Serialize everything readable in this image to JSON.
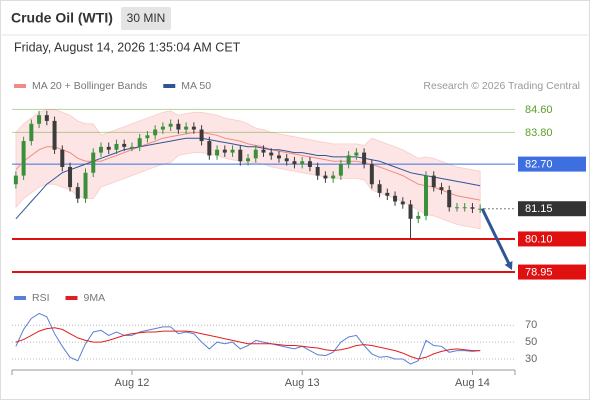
{
  "header": {
    "title": "Crude Oil (WTI)",
    "interval": "30 MIN",
    "timestamp": "Friday, August 14, 2026 1:35:04 AM CET"
  },
  "chart_data": [
    {
      "type": "candlestick",
      "source": "Research © 2026 Trading Central",
      "xlim": [
        -0.5,
        64.5
      ],
      "ylim": [
        78.5,
        85.1
      ],
      "up_color": "#3a8f3a",
      "down_color": "#3c3c3c",
      "band_color": "#fbd3d3",
      "open": [
        82.0,
        82.3,
        83.5,
        84.1,
        84.4,
        84.2,
        83.2,
        82.6,
        81.9,
        81.5,
        82.4,
        83.1,
        83.3,
        83.2,
        83.4,
        83.3,
        83.3,
        83.6,
        83.7,
        83.9,
        84.0,
        84.1,
        83.9,
        84.0,
        83.9,
        83.5,
        83.0,
        83.2,
        83.1,
        83.2,
        82.8,
        82.9,
        83.2,
        83.1,
        83.0,
        82.9,
        82.8,
        82.7,
        82.8,
        82.6,
        82.3,
        82.2,
        82.3,
        82.7,
        83.0,
        83.1,
        82.7,
        82.0,
        81.7,
        81.6,
        81.4,
        81.3,
        80.8,
        80.9,
        82.3,
        81.9,
        81.8,
        81.2,
        81.2,
        81.2,
        81.15
      ],
      "high": [
        82.45,
        83.65,
        84.25,
        84.55,
        84.55,
        84.35,
        83.35,
        82.75,
        82.05,
        82.55,
        83.25,
        83.45,
        83.45,
        83.55,
        83.55,
        83.45,
        83.75,
        83.85,
        84.05,
        84.15,
        84.25,
        84.25,
        84.15,
        84.15,
        84.05,
        83.65,
        83.35,
        83.35,
        83.35,
        83.35,
        83.05,
        83.35,
        83.35,
        83.25,
        83.15,
        83.05,
        82.95,
        82.95,
        82.95,
        82.75,
        82.45,
        82.45,
        82.85,
        83.15,
        83.25,
        83.25,
        82.85,
        82.15,
        81.85,
        81.75,
        81.55,
        81.45,
        81.05,
        82.45,
        82.45,
        82.05,
        81.95,
        81.35,
        81.35,
        81.35,
        81.3
      ],
      "low": [
        81.85,
        82.15,
        83.35,
        83.95,
        84.05,
        83.05,
        82.45,
        81.75,
        81.35,
        81.35,
        82.25,
        82.95,
        83.05,
        83.05,
        83.15,
        83.15,
        83.15,
        83.45,
        83.55,
        83.75,
        83.85,
        83.75,
        83.75,
        83.75,
        83.35,
        82.85,
        82.85,
        82.95,
        82.95,
        82.65,
        82.65,
        82.75,
        82.95,
        82.85,
        82.75,
        82.65,
        82.55,
        82.55,
        82.45,
        82.15,
        82.05,
        82.05,
        82.15,
        82.55,
        82.85,
        82.55,
        81.85,
        81.55,
        81.45,
        81.25,
        81.15,
        80.1,
        80.65,
        80.75,
        81.75,
        81.65,
        81.05,
        81.05,
        81.05,
        81.0,
        81.0
      ],
      "close": [
        82.3,
        83.5,
        84.1,
        84.4,
        84.2,
        83.2,
        82.6,
        81.9,
        81.5,
        82.4,
        83.1,
        83.3,
        83.2,
        83.4,
        83.3,
        83.3,
        83.6,
        83.7,
        83.9,
        84.0,
        84.1,
        83.9,
        84.0,
        83.9,
        83.5,
        83.0,
        83.2,
        83.1,
        83.2,
        82.8,
        82.9,
        83.2,
        83.1,
        83.0,
        82.9,
        82.8,
        82.7,
        82.8,
        82.6,
        82.3,
        82.2,
        82.3,
        82.7,
        83.0,
        83.1,
        82.7,
        82.0,
        81.7,
        81.6,
        81.4,
        81.3,
        80.8,
        80.9,
        82.3,
        81.9,
        81.8,
        81.2,
        81.2,
        81.2,
        81.15,
        81.15
      ],
      "series": [
        {
          "name": "MA 20 + Bollinger Bands",
          "color": "#f28b82",
          "values": [
            82.5,
            82.8,
            83.0,
            83.2,
            83.3,
            83.3,
            83.2,
            83.1,
            82.9,
            82.8,
            82.8,
            82.8,
            82.9,
            83.0,
            83.1,
            83.2,
            83.3,
            83.4,
            83.5,
            83.6,
            83.65,
            83.7,
            83.75,
            83.8,
            83.8,
            83.75,
            83.7,
            83.6,
            83.55,
            83.5,
            83.4,
            83.35,
            83.3,
            83.2,
            83.15,
            83.1,
            83.05,
            83.0,
            82.95,
            82.9,
            82.85,
            82.8,
            82.8,
            82.8,
            82.8,
            82.75,
            82.7,
            82.6,
            82.5,
            82.4,
            82.3,
            82.15,
            82.0,
            81.95,
            81.9,
            81.8,
            81.7,
            81.6,
            81.55,
            81.5,
            81.45
          ],
          "upper": [
            83.8,
            84.1,
            84.3,
            84.5,
            84.6,
            84.6,
            84.5,
            84.4,
            84.2,
            84.1,
            84.1,
            83.7,
            83.8,
            83.9,
            84.0,
            84.1,
            84.2,
            84.3,
            84.4,
            84.5,
            84.55,
            84.4,
            84.45,
            84.5,
            84.5,
            84.45,
            84.4,
            84.3,
            84.25,
            84.2,
            84.1,
            83.95,
            83.9,
            83.8,
            83.75,
            83.7,
            83.65,
            83.6,
            83.55,
            83.5,
            83.45,
            83.4,
            83.4,
            83.4,
            83.4,
            83.35,
            83.6,
            83.5,
            83.4,
            83.3,
            83.2,
            83.05,
            82.9,
            82.95,
            82.9,
            82.8,
            82.7,
            82.6,
            82.55,
            82.5,
            82.45
          ],
          "lower": [
            81.2,
            81.5,
            81.7,
            81.9,
            82.0,
            82.0,
            81.9,
            81.8,
            81.6,
            81.5,
            81.5,
            81.9,
            82.0,
            82.1,
            82.2,
            82.3,
            82.4,
            82.5,
            82.6,
            82.7,
            82.75,
            83.0,
            83.05,
            83.1,
            83.1,
            83.05,
            83.0,
            82.9,
            82.85,
            82.8,
            82.7,
            82.75,
            82.7,
            82.6,
            82.55,
            82.5,
            82.45,
            82.4,
            82.35,
            82.3,
            82.25,
            82.2,
            82.2,
            82.2,
            82.2,
            82.15,
            81.8,
            81.7,
            81.6,
            81.5,
            81.4,
            81.25,
            81.1,
            80.95,
            80.9,
            80.8,
            80.7,
            80.6,
            80.55,
            80.5,
            80.45
          ]
        },
        {
          "name": "MA 50",
          "color": "#2f5597",
          "values": [
            80.8,
            81.1,
            81.4,
            81.7,
            82.0,
            82.2,
            82.4,
            82.5,
            82.6,
            82.7,
            82.8,
            82.9,
            83.0,
            83.1,
            83.2,
            83.25,
            83.3,
            83.35,
            83.4,
            83.45,
            83.5,
            83.55,
            83.6,
            83.6,
            83.6,
            83.55,
            83.5,
            83.45,
            83.4,
            83.35,
            83.3,
            83.3,
            83.25,
            83.2,
            83.2,
            83.15,
            83.1,
            83.1,
            83.05,
            83.0,
            83.0,
            82.95,
            82.95,
            82.95,
            82.95,
            82.9,
            82.85,
            82.8,
            82.7,
            82.6,
            82.5,
            82.4,
            82.35,
            82.3,
            82.25,
            82.2,
            82.15,
            82.1,
            82.05,
            82.0,
            81.95
          ]
        }
      ],
      "levels": [
        {
          "value": 84.6,
          "label": "84.60",
          "color": "#5a9e2a"
        },
        {
          "value": 83.8,
          "label": "83.80",
          "color": "#5a9e2a"
        },
        {
          "value": 82.7,
          "label": "82.70",
          "color": "#3d6fe0"
        },
        {
          "value": 81.15,
          "label": "81.15",
          "color": "#333333"
        },
        {
          "value": 80.1,
          "label": "80.10",
          "color": "#e01010"
        },
        {
          "value": 78.95,
          "label": "78.95",
          "color": "#e01010"
        }
      ]
    },
    {
      "type": "line",
      "xlim": [
        -0.5,
        64.5
      ],
      "ylim": [
        17,
        88
      ],
      "xticks": [
        {
          "value": 15,
          "label": "Aug 12"
        },
        {
          "value": 37,
          "label": "Aug 13"
        },
        {
          "value": 59,
          "label": "Aug 14"
        }
      ],
      "yticks": [
        70,
        50,
        30
      ],
      "grid": true,
      "series": [
        {
          "name": "RSI",
          "color": "#5b7fd6",
          "values": [
            45,
            65,
            78,
            84,
            80,
            60,
            45,
            32,
            28,
            48,
            62,
            64,
            58,
            62,
            58,
            58,
            62,
            64,
            66,
            68,
            68,
            60,
            62,
            60,
            50,
            42,
            50,
            48,
            50,
            42,
            46,
            52,
            50,
            48,
            46,
            44,
            42,
            45,
            40,
            35,
            34,
            38,
            50,
            56,
            58,
            46,
            36,
            32,
            33,
            30,
            30,
            24,
            28,
            52,
            46,
            45,
            38,
            40,
            40,
            39,
            40
          ]
        },
        {
          "name": "9MA",
          "color": "#e02020",
          "values": [
            50,
            53,
            58,
            63,
            66,
            67,
            65,
            60,
            55,
            52,
            50,
            50,
            52,
            55,
            58,
            60,
            61,
            62,
            62,
            63,
            63,
            63,
            63,
            62,
            60,
            58,
            56,
            54,
            52,
            50,
            48,
            48,
            48,
            48,
            47,
            46,
            46,
            45,
            44,
            43,
            41,
            40,
            41,
            43,
            46,
            47,
            46,
            44,
            42,
            40,
            37,
            33,
            30,
            32,
            36,
            39,
            41,
            42,
            41,
            40,
            40
          ]
        }
      ]
    }
  ]
}
